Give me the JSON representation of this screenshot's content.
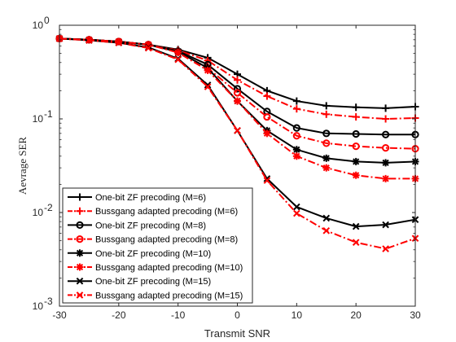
{
  "chart_data": {
    "type": "line",
    "xlabel": "Transmit SNR",
    "ylabel": "Aevrage SER",
    "yscale": "log",
    "xlim": [
      -30,
      30
    ],
    "ylim": [
      0.001,
      1
    ],
    "xticks": [
      -30,
      -20,
      -10,
      0,
      10,
      20,
      30
    ],
    "xtick_labels": [
      "-30",
      "-20",
      "-10",
      "0",
      "10",
      "20",
      "30"
    ],
    "yticks": [
      1,
      0.1,
      0.01,
      0.001
    ],
    "ytick_labels": [
      {
        "base": "10",
        "exp": "0"
      },
      {
        "base": "10",
        "exp": "-1"
      },
      {
        "base": "10",
        "exp": "-2"
      },
      {
        "base": "10",
        "exp": "-3"
      }
    ],
    "grid": false,
    "legend_position": "bottom-left",
    "x": [
      -30,
      -25,
      -20,
      -15,
      -10,
      -5,
      0,
      5,
      10,
      15,
      20,
      25,
      30
    ],
    "series": [
      {
        "name": "One-bit ZF precoding (M=6)",
        "color": "#000000",
        "style": "solid",
        "marker": "plus",
        "values": [
          0.72,
          0.7,
          0.67,
          0.62,
          0.55,
          0.45,
          0.3,
          0.2,
          0.155,
          0.138,
          0.133,
          0.13,
          0.135
        ]
      },
      {
        "name": "Bussgang adapted precoding (M=6)",
        "color": "#ff0000",
        "style": "dashdot",
        "marker": "plus",
        "values": [
          0.72,
          0.7,
          0.67,
          0.62,
          0.54,
          0.42,
          0.26,
          0.175,
          0.128,
          0.112,
          0.105,
          0.1,
          0.102
        ]
      },
      {
        "name": "One-bit ZF precoding (M=8)",
        "color": "#000000",
        "style": "solid",
        "marker": "circle",
        "values": [
          0.72,
          0.7,
          0.67,
          0.62,
          0.53,
          0.38,
          0.21,
          0.12,
          0.08,
          0.07,
          0.069,
          0.068,
          0.068
        ]
      },
      {
        "name": "Bussgang adapted precoding (M=8)",
        "color": "#ff0000",
        "style": "dashdot",
        "marker": "circle",
        "values": [
          0.72,
          0.7,
          0.67,
          0.62,
          0.52,
          0.35,
          0.19,
          0.105,
          0.066,
          0.055,
          0.051,
          0.049,
          0.048
        ]
      },
      {
        "name": "One-bit ZF precoding (M=10)",
        "color": "#000000",
        "style": "solid",
        "marker": "asterisk",
        "values": [
          0.72,
          0.7,
          0.67,
          0.62,
          0.52,
          0.35,
          0.155,
          0.075,
          0.047,
          0.038,
          0.035,
          0.034,
          0.035
        ]
      },
      {
        "name": "Bussgang adapted precoding (M=10)",
        "color": "#ff0000",
        "style": "dashdot",
        "marker": "asterisk",
        "values": [
          0.72,
          0.7,
          0.67,
          0.62,
          0.51,
          0.33,
          0.155,
          0.07,
          0.04,
          0.03,
          0.025,
          0.023,
          0.023
        ]
      },
      {
        "name": "One-bit ZF precoding (M=15)",
        "color": "#000000",
        "style": "solid",
        "marker": "x",
        "values": [
          0.72,
          0.69,
          0.65,
          0.58,
          0.44,
          0.23,
          0.075,
          0.023,
          0.0115,
          0.0087,
          0.0071,
          0.0074,
          0.0084
        ]
      },
      {
        "name": "Bussgang adapted precoding (M=15)",
        "color": "#ff0000",
        "style": "dashdot",
        "marker": "x",
        "values": [
          0.72,
          0.69,
          0.65,
          0.57,
          0.43,
          0.22,
          0.075,
          0.022,
          0.0098,
          0.0064,
          0.0048,
          0.0041,
          0.0053
        ]
      }
    ]
  }
}
